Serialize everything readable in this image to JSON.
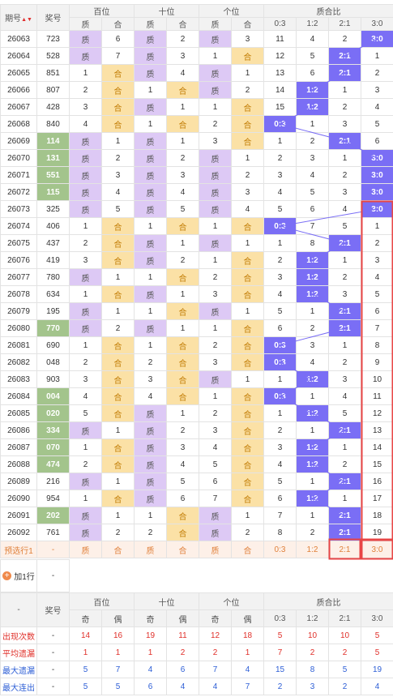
{
  "header": {
    "issue": "期号",
    "prize": "奖号",
    "groups": [
      "百位",
      "十位",
      "个位",
      "质合比"
    ],
    "sub_zh": [
      "质",
      "合"
    ],
    "ratio_cols": [
      "0:3",
      "1:2",
      "2:1",
      "3:0"
    ]
  },
  "rows": [
    {
      "issue": "26063",
      "prize": "723",
      "b": [
        "zhi",
        6
      ],
      "s": [
        "zhi",
        2
      ],
      "g": [
        "zhi",
        3
      ],
      "r": [
        11,
        4,
        2,
        "3:0"
      ],
      "hl": 3
    },
    {
      "issue": "26064",
      "prize": "528",
      "b": [
        "zhi",
        7
      ],
      "s": [
        "zhi",
        3
      ],
      "g": [
        1,
        "he"
      ],
      "r": [
        12,
        5,
        "2:1",
        1
      ],
      "hl": 2
    },
    {
      "issue": "26065",
      "prize": "851",
      "b": [
        1,
        "he"
      ],
      "s": [
        "zhi",
        4
      ],
      "g": [
        "zhi",
        1
      ],
      "r": [
        13,
        6,
        "2:1",
        2
      ],
      "hl": 2
    },
    {
      "issue": "26066",
      "prize": "807",
      "b": [
        2,
        "he"
      ],
      "s": [
        1,
        "he"
      ],
      "g": [
        "zhi",
        2
      ],
      "r": [
        14,
        "1:2",
        1,
        3
      ],
      "hl": 1
    },
    {
      "issue": "26067",
      "prize": "428",
      "b": [
        3,
        "he"
      ],
      "s": [
        "zhi",
        1
      ],
      "g": [
        1,
        "he"
      ],
      "r": [
        15,
        "1:2",
        2,
        4
      ],
      "hl": 1
    },
    {
      "issue": "26068",
      "prize": "840",
      "b": [
        4,
        "he"
      ],
      "s": [
        1,
        "he"
      ],
      "g": [
        2,
        "he"
      ],
      "r": [
        "0:3",
        1,
        3,
        5
      ],
      "hl": 0
    },
    {
      "issue": "26069",
      "prize": "114",
      "b": [
        "zhi",
        1
      ],
      "s": [
        "zhi",
        1
      ],
      "g": [
        3,
        "he"
      ],
      "r": [
        1,
        2,
        "2:1",
        6
      ],
      "hl": 2,
      "green": true
    },
    {
      "issue": "26070",
      "prize": "131",
      "b": [
        "zhi",
        2
      ],
      "s": [
        "zhi",
        2
      ],
      "g": [
        "zhi",
        1
      ],
      "r": [
        2,
        3,
        1,
        "3:0"
      ],
      "hl": 3,
      "green": true
    },
    {
      "issue": "26071",
      "prize": "551",
      "b": [
        "zhi",
        3
      ],
      "s": [
        "zhi",
        3
      ],
      "g": [
        "zhi",
        2
      ],
      "r": [
        3,
        4,
        2,
        "3:0"
      ],
      "hl": 3,
      "green": true
    },
    {
      "issue": "26072",
      "prize": "115",
      "b": [
        "zhi",
        4
      ],
      "s": [
        "zhi",
        4
      ],
      "g": [
        "zhi",
        3
      ],
      "r": [
        4,
        5,
        3,
        "3:0"
      ],
      "hl": 3,
      "green": true
    },
    {
      "issue": "26073",
      "prize": "325",
      "b": [
        "zhi",
        5
      ],
      "s": [
        "zhi",
        5
      ],
      "g": [
        "zhi",
        4
      ],
      "r": [
        5,
        6,
        4,
        "3:0"
      ],
      "hl": 3
    },
    {
      "issue": "26074",
      "prize": "406",
      "b": [
        1,
        "he"
      ],
      "s": [
        1,
        "he"
      ],
      "g": [
        1,
        "he"
      ],
      "r": [
        "0:3",
        7,
        5,
        1
      ],
      "hl": 0
    },
    {
      "issue": "26075",
      "prize": "437",
      "b": [
        2,
        "he"
      ],
      "s": [
        "zhi",
        1
      ],
      "g": [
        "zhi",
        1
      ],
      "r": [
        1,
        8,
        "2:1",
        2
      ],
      "hl": 2
    },
    {
      "issue": "26076",
      "prize": "419",
      "b": [
        3,
        "he"
      ],
      "s": [
        "zhi",
        2
      ],
      "g": [
        1,
        "he"
      ],
      "r": [
        2,
        "1:2",
        1,
        3
      ],
      "hl": 1
    },
    {
      "issue": "26077",
      "prize": "780",
      "b": [
        "zhi",
        1
      ],
      "s": [
        1,
        "he"
      ],
      "g": [
        2,
        "he"
      ],
      "r": [
        3,
        "1:2",
        2,
        4
      ],
      "hl": 1
    },
    {
      "issue": "26078",
      "prize": "634",
      "b": [
        1,
        "he"
      ],
      "s": [
        "zhi",
        1
      ],
      "g": [
        3,
        "he"
      ],
      "r": [
        4,
        "1:2",
        3,
        5
      ],
      "hl": 1
    },
    {
      "issue": "26079",
      "prize": "195",
      "b": [
        "zhi",
        1
      ],
      "s": [
        1,
        "he"
      ],
      "g": [
        "zhi",
        1
      ],
      "r": [
        5,
        1,
        "2:1",
        6
      ],
      "hl": 2
    },
    {
      "issue": "26080",
      "prize": "770",
      "b": [
        "zhi",
        2
      ],
      "s": [
        "zhi",
        1
      ],
      "g": [
        1,
        "he"
      ],
      "r": [
        6,
        2,
        "2:1",
        7
      ],
      "hl": 2,
      "green": true
    },
    {
      "issue": "26081",
      "prize": "690",
      "b": [
        1,
        "he"
      ],
      "s": [
        1,
        "he"
      ],
      "g": [
        2,
        "he"
      ],
      "r": [
        "0:3",
        3,
        1,
        8
      ],
      "hl": 0
    },
    {
      "issue": "26082",
      "prize": "048",
      "b": [
        2,
        "he"
      ],
      "s": [
        2,
        "he"
      ],
      "g": [
        3,
        "he"
      ],
      "r": [
        "0:3",
        4,
        2,
        9
      ],
      "hl": 0
    },
    {
      "issue": "26083",
      "prize": "903",
      "b": [
        3,
        "he"
      ],
      "s": [
        3,
        "he"
      ],
      "g": [
        "zhi",
        1
      ],
      "r": [
        1,
        "1:2",
        3,
        10
      ],
      "hl": 1
    },
    {
      "issue": "26084",
      "prize": "004",
      "b": [
        4,
        "he"
      ],
      "s": [
        4,
        "he"
      ],
      "g": [
        1,
        "he"
      ],
      "r": [
        "0:3",
        1,
        4,
        11
      ],
      "hl": 0,
      "green": true
    },
    {
      "issue": "26085",
      "prize": "020",
      "b": [
        5,
        "he"
      ],
      "s": [
        "zhi",
        1
      ],
      "g": [
        2,
        "he"
      ],
      "r": [
        1,
        "1:2",
        5,
        12
      ],
      "hl": 1,
      "green": true
    },
    {
      "issue": "26086",
      "prize": "334",
      "b": [
        "zhi",
        1
      ],
      "s": [
        "zhi",
        2
      ],
      "g": [
        3,
        "he"
      ],
      "r": [
        2,
        1,
        "2:1",
        13
      ],
      "hl": 2,
      "green": true
    },
    {
      "issue": "26087",
      "prize": "070",
      "b": [
        1,
        "he"
      ],
      "s": [
        "zhi",
        3
      ],
      "g": [
        4,
        "he"
      ],
      "r": [
        3,
        "1:2",
        1,
        14
      ],
      "hl": 1,
      "green": true
    },
    {
      "issue": "26088",
      "prize": "474",
      "b": [
        2,
        "he"
      ],
      "s": [
        "zhi",
        4
      ],
      "g": [
        5,
        "he"
      ],
      "r": [
        4,
        "1:2",
        2,
        15
      ],
      "hl": 1,
      "green": true
    },
    {
      "issue": "26089",
      "prize": "216",
      "b": [
        "zhi",
        1
      ],
      "s": [
        "zhi",
        5
      ],
      "g": [
        6,
        "he"
      ],
      "r": [
        5,
        1,
        "2:1",
        16
      ],
      "hl": 2
    },
    {
      "issue": "26090",
      "prize": "954",
      "b": [
        1,
        "he"
      ],
      "s": [
        "zhi",
        6
      ],
      "g": [
        7,
        "he"
      ],
      "r": [
        6,
        "1:2",
        1,
        17
      ],
      "hl": 1
    },
    {
      "issue": "26091",
      "prize": "202",
      "b": [
        "zhi",
        1
      ],
      "s": [
        1,
        "he"
      ],
      "g": [
        "zhi",
        1
      ],
      "r": [
        7,
        1,
        "2:1",
        18
      ],
      "hl": 2,
      "green": true
    },
    {
      "issue": "26092",
      "prize": "761",
      "b": [
        "zhi",
        2
      ],
      "s": [
        2,
        "he"
      ],
      "g": [
        "zhi",
        2
      ],
      "r": [
        8,
        2,
        "2:1",
        19
      ],
      "hl": 2
    }
  ],
  "predict": {
    "label": "预选行1",
    "prize": "-",
    "cells": [
      "质",
      "合",
      "质",
      "合",
      "质",
      "合"
    ],
    "ratios": [
      "0:3",
      "1:2",
      "2:1",
      "3:0"
    ]
  },
  "add_row": {
    "label": "加1行",
    "icon": "plus-circle-icon",
    "dash": "-"
  },
  "stats": {
    "dash": "-",
    "prize": "奖号",
    "groups": [
      "百位",
      "十位",
      "个位",
      "质合比"
    ],
    "sub": [
      "奇",
      "偶"
    ],
    "ratio_cols": [
      "0:3",
      "1:2",
      "2:1",
      "3:0"
    ],
    "rows": [
      {
        "label": "出现次数",
        "vals": [
          "-",
          "14",
          "16",
          "19",
          "11",
          "12",
          "18",
          "5",
          "10",
          "10",
          "5"
        ],
        "color": "red"
      },
      {
        "label": "平均遗漏",
        "vals": [
          "-",
          "1",
          "1",
          "1",
          "2",
          "2",
          "1",
          "7",
          "2",
          "2",
          "5"
        ],
        "color": "red"
      },
      {
        "label": "最大遗漏",
        "vals": [
          "-",
          "5",
          "7",
          "4",
          "6",
          "7",
          "4",
          "15",
          "8",
          "5",
          "19"
        ],
        "color": "blue"
      },
      {
        "label": "最大连出",
        "vals": [
          "-",
          "5",
          "5",
          "6",
          "4",
          "4",
          "7",
          "2",
          "3",
          "2",
          "4"
        ],
        "color": "blue"
      }
    ]
  },
  "colors": {
    "zhi": "#ddc9f5",
    "he": "#fbe1a6",
    "highlight": "#7a6ef5",
    "green": "#a3c48c",
    "box": "#e84545"
  }
}
